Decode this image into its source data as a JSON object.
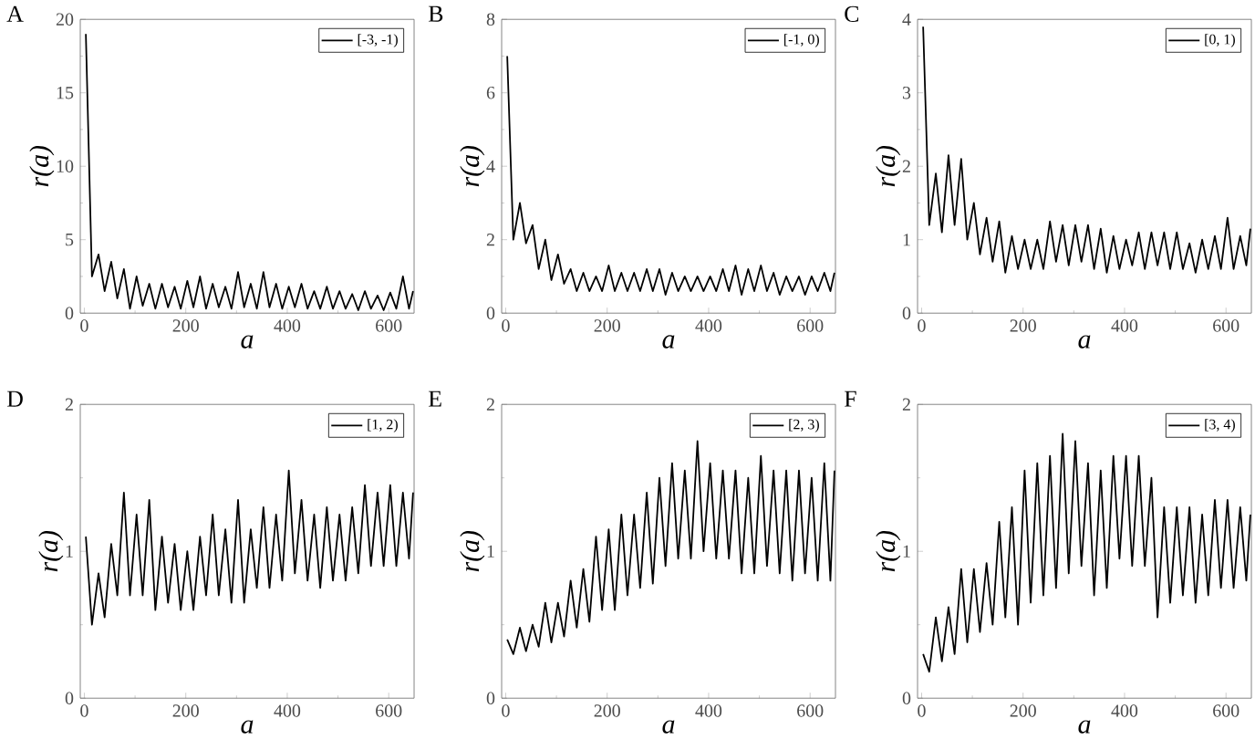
{
  "chart_data": [
    {
      "type": "line",
      "title": "A",
      "xlabel": "a",
      "ylabel": "r(a)",
      "legend": "top right",
      "xlim": [
        -8,
        650
      ],
      "ylim": [
        0,
        20
      ],
      "xticks": [
        0,
        200,
        400,
        600
      ],
      "yticks": [
        0,
        5,
        10,
        15,
        20
      ],
      "x": [
        3,
        15,
        28,
        40,
        53,
        65,
        78,
        90,
        103,
        115,
        128,
        140,
        153,
        165,
        178,
        190,
        203,
        215,
        228,
        240,
        253,
        265,
        278,
        290,
        303,
        315,
        328,
        340,
        353,
        365,
        378,
        390,
        403,
        415,
        428,
        440,
        453,
        465,
        478,
        490,
        503,
        515,
        528,
        540,
        553,
        565,
        578,
        590,
        603,
        615,
        628,
        640,
        648
      ],
      "series": [
        {
          "name": "[-3, -1)",
          "color": "#000000",
          "values": [
            19,
            2.5,
            4,
            1.5,
            3.5,
            1,
            3,
            0.3,
            2.5,
            0.5,
            2,
            0.3,
            2,
            0.4,
            1.8,
            0.3,
            2.2,
            0.4,
            2.5,
            0.3,
            2,
            0.4,
            1.8,
            0.3,
            2.8,
            0.4,
            2,
            0.3,
            2.8,
            0.4,
            2,
            0.3,
            1.8,
            0.4,
            2,
            0.3,
            1.5,
            0.3,
            1.8,
            0.3,
            1.5,
            0.3,
            1.3,
            0.2,
            1.5,
            0.3,
            1.2,
            0.2,
            1.4,
            0.3,
            2.5,
            0.3,
            1.5
          ]
        }
      ]
    },
    {
      "type": "line",
      "title": "B",
      "xlabel": "a",
      "ylabel": "r(a)",
      "legend": "top right",
      "xlim": [
        -8,
        650
      ],
      "ylim": [
        0,
        8
      ],
      "xticks": [
        0,
        200,
        400,
        600
      ],
      "yticks": [
        0,
        2,
        4,
        6,
        8
      ],
      "x": [
        3,
        15,
        28,
        40,
        53,
        65,
        78,
        90,
        103,
        115,
        128,
        140,
        153,
        165,
        178,
        190,
        203,
        215,
        228,
        240,
        253,
        265,
        278,
        290,
        303,
        315,
        328,
        340,
        353,
        365,
        378,
        390,
        403,
        415,
        428,
        440,
        453,
        465,
        478,
        490,
        503,
        515,
        528,
        540,
        553,
        565,
        578,
        590,
        603,
        615,
        628,
        640,
        648
      ],
      "series": [
        {
          "name": "[-1, 0)",
          "color": "#000000",
          "values": [
            7,
            2,
            3,
            1.9,
            2.4,
            1.2,
            2,
            0.9,
            1.6,
            0.8,
            1.2,
            0.6,
            1.1,
            0.6,
            1.0,
            0.6,
            1.3,
            0.6,
            1.1,
            0.6,
            1.1,
            0.6,
            1.2,
            0.6,
            1.2,
            0.5,
            1.1,
            0.6,
            1.0,
            0.6,
            1.0,
            0.6,
            1.0,
            0.6,
            1.2,
            0.6,
            1.3,
            0.5,
            1.2,
            0.6,
            1.3,
            0.6,
            1.1,
            0.5,
            1.0,
            0.6,
            1.0,
            0.5,
            1.0,
            0.6,
            1.1,
            0.6,
            1.1
          ]
        }
      ]
    },
    {
      "type": "line",
      "title": "C",
      "xlabel": "a",
      "ylabel": "r(a)",
      "legend": "top right",
      "xlim": [
        -8,
        650
      ],
      "ylim": [
        0,
        4
      ],
      "xticks": [
        0,
        200,
        400,
        600
      ],
      "yticks": [
        0,
        1,
        2,
        3,
        4
      ],
      "x": [
        3,
        15,
        28,
        40,
        53,
        65,
        78,
        90,
        103,
        115,
        128,
        140,
        153,
        165,
        178,
        190,
        203,
        215,
        228,
        240,
        253,
        265,
        278,
        290,
        303,
        315,
        328,
        340,
        353,
        365,
        378,
        390,
        403,
        415,
        428,
        440,
        453,
        465,
        478,
        490,
        503,
        515,
        528,
        540,
        553,
        565,
        578,
        590,
        603,
        615,
        628,
        640,
        648
      ],
      "series": [
        {
          "name": "[0, 1)",
          "color": "#000000",
          "values": [
            3.9,
            1.2,
            1.9,
            1.1,
            2.15,
            1.2,
            2.1,
            1.0,
            1.5,
            0.8,
            1.3,
            0.7,
            1.25,
            0.55,
            1.05,
            0.6,
            1.0,
            0.6,
            1.0,
            0.6,
            1.25,
            0.7,
            1.2,
            0.65,
            1.2,
            0.7,
            1.2,
            0.6,
            1.15,
            0.55,
            1.05,
            0.6,
            1.0,
            0.65,
            1.1,
            0.6,
            1.1,
            0.65,
            1.1,
            0.6,
            1.1,
            0.6,
            0.95,
            0.55,
            1.0,
            0.6,
            1.05,
            0.6,
            1.3,
            0.6,
            1.05,
            0.65,
            1.15
          ]
        }
      ]
    },
    {
      "type": "line",
      "title": "D",
      "xlabel": "a",
      "ylabel": "r(a)",
      "legend": "top right",
      "xlim": [
        -8,
        650
      ],
      "ylim": [
        0,
        2
      ],
      "xticks": [
        0,
        200,
        400,
        600
      ],
      "yticks": [
        0,
        1,
        2
      ],
      "x": [
        3,
        15,
        28,
        40,
        53,
        65,
        78,
        90,
        103,
        115,
        128,
        140,
        153,
        165,
        178,
        190,
        203,
        215,
        228,
        240,
        253,
        265,
        278,
        290,
        303,
        315,
        328,
        340,
        353,
        365,
        378,
        390,
        403,
        415,
        428,
        440,
        453,
        465,
        478,
        490,
        503,
        515,
        528,
        540,
        553,
        565,
        578,
        590,
        603,
        615,
        628,
        640,
        648
      ],
      "series": [
        {
          "name": "[1, 2)",
          "color": "#000000",
          "values": [
            1.1,
            0.5,
            0.85,
            0.55,
            1.05,
            0.7,
            1.4,
            0.7,
            1.25,
            0.7,
            1.35,
            0.6,
            1.1,
            0.65,
            1.05,
            0.6,
            1.0,
            0.6,
            1.1,
            0.7,
            1.25,
            0.7,
            1.15,
            0.65,
            1.35,
            0.65,
            1.15,
            0.75,
            1.3,
            0.75,
            1.25,
            0.8,
            1.55,
            0.85,
            1.35,
            0.8,
            1.25,
            0.75,
            1.3,
            0.8,
            1.25,
            0.8,
            1.3,
            0.85,
            1.45,
            0.9,
            1.4,
            0.9,
            1.45,
            0.9,
            1.4,
            0.95,
            1.4
          ]
        }
      ]
    },
    {
      "type": "line",
      "title": "E",
      "xlabel": "a",
      "ylabel": "r(a)",
      "legend": "top right",
      "xlim": [
        -8,
        650
      ],
      "ylim": [
        0,
        2
      ],
      "xticks": [
        0,
        200,
        400,
        600
      ],
      "yticks": [
        0,
        1,
        2
      ],
      "x": [
        3,
        15,
        28,
        40,
        53,
        65,
        78,
        90,
        103,
        115,
        128,
        140,
        153,
        165,
        178,
        190,
        203,
        215,
        228,
        240,
        253,
        265,
        278,
        290,
        303,
        315,
        328,
        340,
        353,
        365,
        378,
        390,
        403,
        415,
        428,
        440,
        453,
        465,
        478,
        490,
        503,
        515,
        528,
        540,
        553,
        565,
        578,
        590,
        603,
        615,
        628,
        640,
        648
      ],
      "series": [
        {
          "name": "[2, 3)",
          "color": "#000000",
          "values": [
            0.4,
            0.3,
            0.48,
            0.32,
            0.5,
            0.35,
            0.65,
            0.38,
            0.65,
            0.42,
            0.8,
            0.48,
            0.88,
            0.52,
            1.1,
            0.6,
            1.15,
            0.6,
            1.25,
            0.7,
            1.25,
            0.75,
            1.4,
            0.78,
            1.5,
            0.9,
            1.6,
            0.95,
            1.55,
            0.95,
            1.75,
            1.0,
            1.6,
            0.95,
            1.55,
            0.95,
            1.55,
            0.85,
            1.5,
            0.85,
            1.65,
            0.9,
            1.55,
            0.85,
            1.55,
            0.8,
            1.55,
            0.85,
            1.5,
            0.8,
            1.6,
            0.8,
            1.55
          ]
        }
      ]
    },
    {
      "type": "line",
      "title": "F",
      "xlabel": "a",
      "ylabel": "r(a)",
      "legend": "top right",
      "xlim": [
        -8,
        650
      ],
      "ylim": [
        0,
        2
      ],
      "xticks": [
        0,
        200,
        400,
        600
      ],
      "yticks": [
        0,
        1,
        2
      ],
      "x": [
        3,
        15,
        28,
        40,
        53,
        65,
        78,
        90,
        103,
        115,
        128,
        140,
        153,
        165,
        178,
        190,
        203,
        215,
        228,
        240,
        253,
        265,
        278,
        290,
        303,
        315,
        328,
        340,
        353,
        365,
        378,
        390,
        403,
        415,
        428,
        440,
        453,
        465,
        478,
        490,
        503,
        515,
        528,
        540,
        553,
        565,
        578,
        590,
        603,
        615,
        628,
        640,
        648
      ],
      "series": [
        {
          "name": "[3, 4)",
          "color": "#000000",
          "values": [
            0.3,
            0.18,
            0.55,
            0.25,
            0.62,
            0.3,
            0.88,
            0.38,
            0.88,
            0.45,
            0.92,
            0.5,
            1.2,
            0.55,
            1.3,
            0.5,
            1.55,
            0.65,
            1.6,
            0.7,
            1.65,
            0.75,
            1.8,
            0.85,
            1.75,
            0.9,
            1.6,
            0.7,
            1.55,
            0.75,
            1.65,
            0.95,
            1.65,
            0.9,
            1.65,
            0.9,
            1.5,
            0.55,
            1.3,
            0.65,
            1.3,
            0.7,
            1.3,
            0.65,
            1.25,
            0.7,
            1.35,
            0.75,
            1.35,
            0.75,
            1.3,
            0.8,
            1.25
          ]
        }
      ]
    }
  ]
}
